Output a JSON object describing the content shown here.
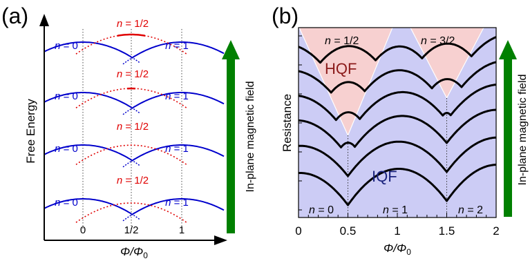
{
  "colors": {
    "blue": "#0000cc",
    "red": "#e00000",
    "green": "#008000",
    "pink_region": "#f7d0d0",
    "blue_region": "#ccccf5",
    "black": "#000000"
  },
  "panel_a": {
    "label": "(a)",
    "y_axis_label": "Free Energy",
    "x_axis_label": "Φ/Φ",
    "x_axis_label_sub": "0",
    "ticks": [
      "0",
      "1/2",
      "1"
    ],
    "n0_var": "n",
    "n0_rest": " = 0",
    "nhalf_var": "n",
    "nhalf_rest": " = 1/2",
    "n1_var": "n",
    "n1_rest": " = 1",
    "arrow_label": "In-plane magnetic field"
  },
  "panel_b": {
    "label": "(b)",
    "y_axis_label": "Resistance",
    "x_axis_label": "Φ/Φ",
    "x_axis_label_sub": "0",
    "ticks": [
      "0",
      "0.5",
      "1",
      "1.5",
      "2"
    ],
    "xlim": [
      0,
      2
    ],
    "region_hqf": "HQF",
    "region_iqf": "IQF",
    "nhalf_var": "n",
    "nhalf_rest": " = 1/2",
    "n3half_var": "n",
    "n3half_rest": " = 3/2",
    "n0_var": "n",
    "n0_rest": " = 0",
    "n1_var": "n",
    "n1_rest": " = 1",
    "n2_var": "n",
    "n2_rest": " = 2",
    "arrow_label": "In-plane magnetic field"
  }
}
